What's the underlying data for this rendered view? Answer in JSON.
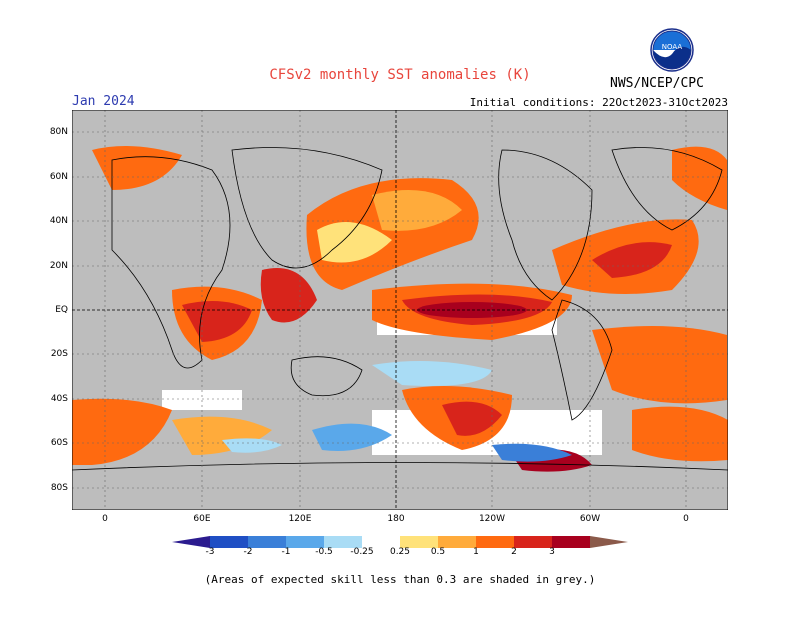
{
  "title": "CFSv2 monthly SST anomalies (K)",
  "org": "NWS/NCEP/CPC",
  "month": "Jan 2024",
  "initial_conditions": "Initial conditions: 22Oct2023-31Oct2023",
  "logo_text": "NOAA",
  "footnote": "(Areas of expected skill less than 0.3 are shaded in grey.)",
  "lat_labels": [
    "80N",
    "60N",
    "40N",
    "20N",
    "EQ",
    "20S",
    "40S",
    "60S",
    "80S"
  ],
  "lon_labels": [
    "0",
    "60E",
    "120E",
    "180",
    "120W",
    "60W",
    "0"
  ],
  "colorbar": {
    "labels": [
      "-3",
      "-2",
      "-1",
      "-0.5",
      "-0.25",
      "0.25",
      "0.5",
      "1",
      "2",
      "3"
    ],
    "colors": [
      "#2b1b8f",
      "#1f4fc4",
      "#3a7fd8",
      "#5aa8ea",
      "#a9dcf5",
      "#ffffff",
      "#ffe27a",
      "#ffab3b",
      "#ff6a10",
      "#d8241b",
      "#a8001e",
      "#8b5a4a"
    ]
  },
  "colors": {
    "land": "#bdbdbd",
    "ocean_white": "#ffffff",
    "title": "#e8453c",
    "month": "#2d3bb0"
  }
}
